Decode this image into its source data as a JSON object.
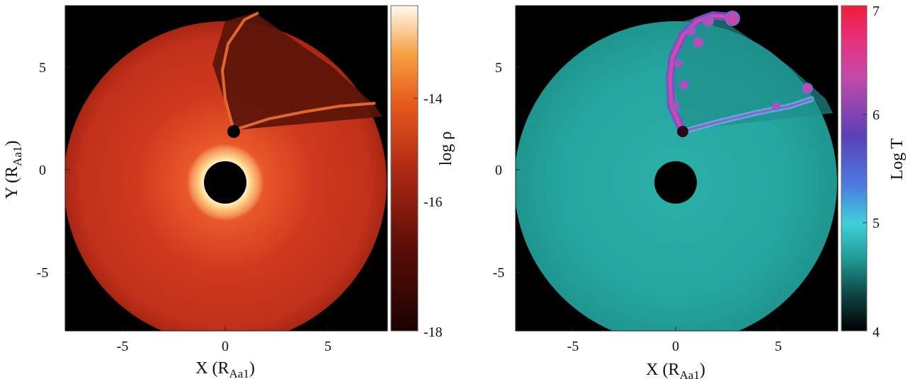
{
  "left_panel": {
    "xlabel_main": "X (R",
    "xlabel_sub": "Aa1",
    "xlabel_close": ")",
    "ylabel_main": "Y (R",
    "ylabel_sub": "Aa1",
    "ylabel_close": ")",
    "xticks": [
      "-5",
      "0",
      "5"
    ],
    "yticks": [
      "5",
      "0",
      "-5"
    ],
    "colorbar_label": "log ρ",
    "colorbar_ticks": [
      "-14",
      "-16",
      "-18"
    ],
    "colors": {
      "outer": "#000000",
      "disk": "#c8301c",
      "glow": "#fff2c8",
      "cavity": "#4a1208"
    }
  },
  "right_panel": {
    "xlabel_main": "X (R",
    "xlabel_sub": "Aa1",
    "xlabel_close": ")",
    "xticks": [
      "-5",
      "0",
      "5"
    ],
    "yticks": [
      "5",
      "0",
      "-5"
    ],
    "colorbar_label": "Log T",
    "colorbar_ticks": [
      "7",
      "6",
      "5",
      "4"
    ],
    "colors": {
      "outer": "#000000",
      "disk": "#24a8a2",
      "shock": "#d4409c",
      "hot": "#6a4fc8"
    }
  }
}
